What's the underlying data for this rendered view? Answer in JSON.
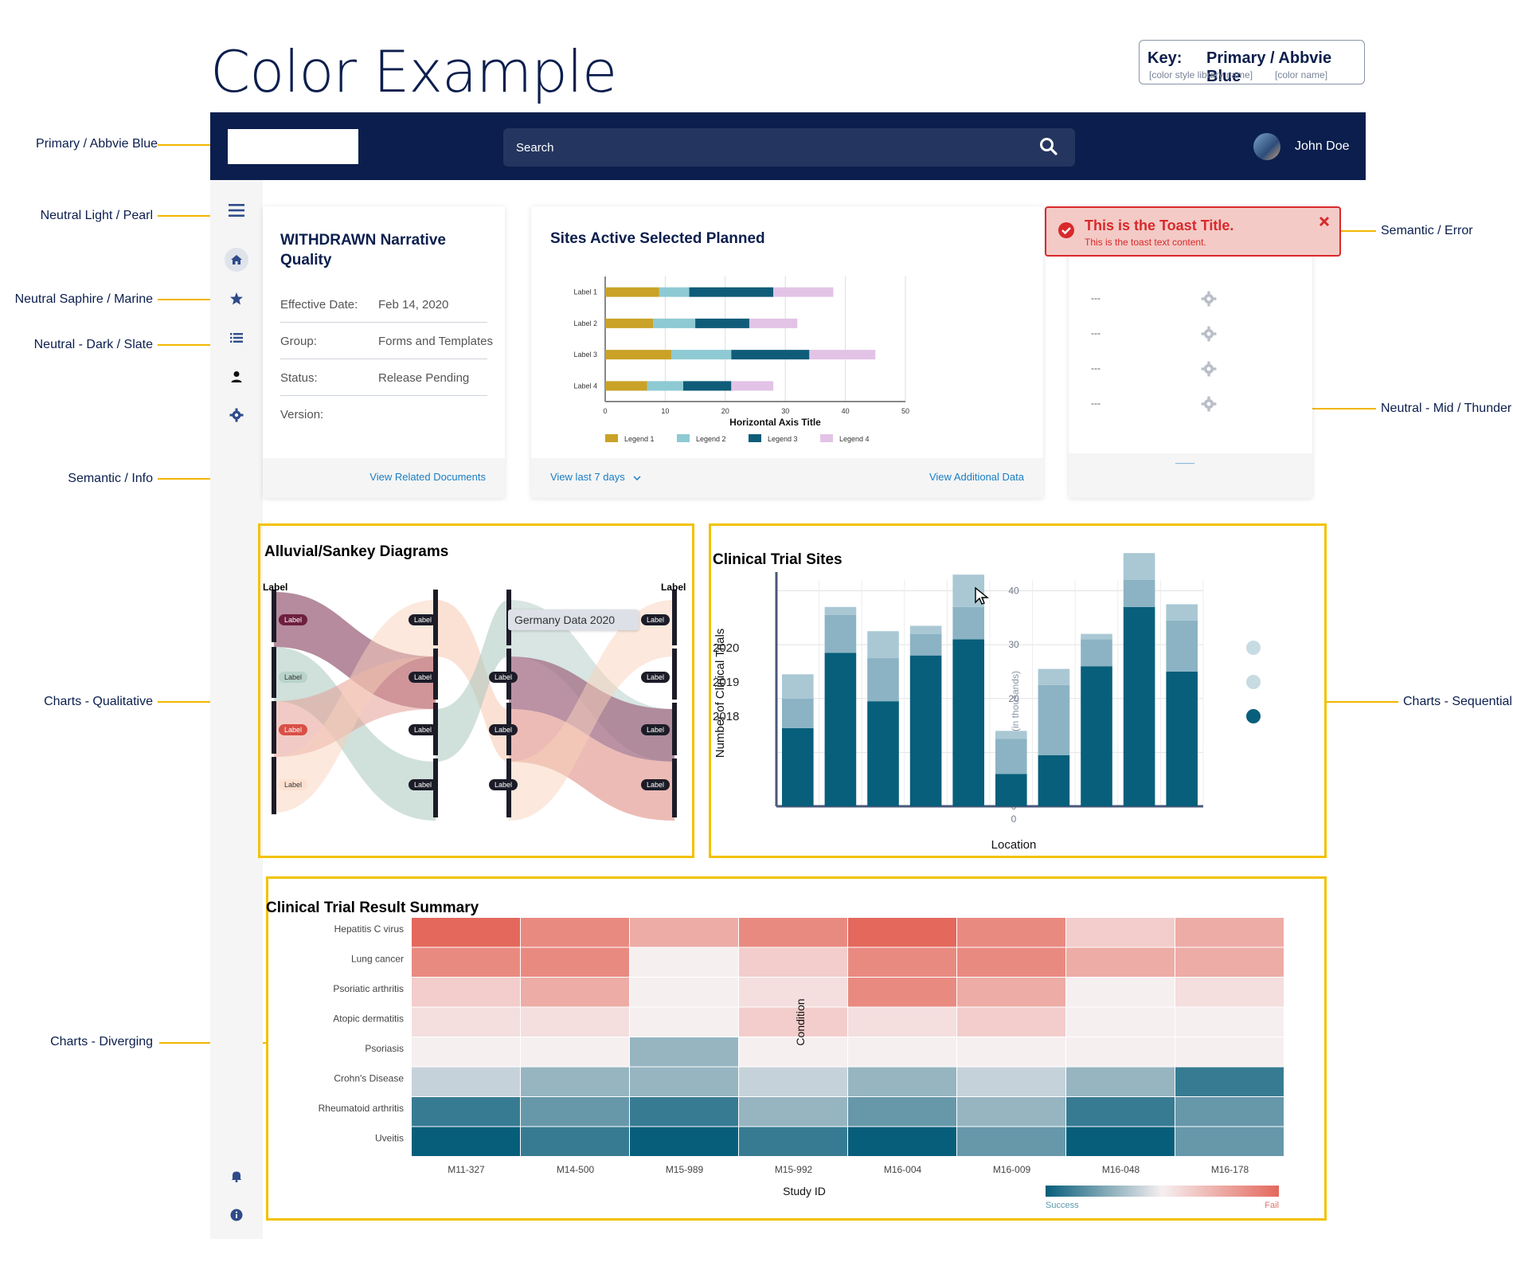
{
  "page": {
    "title": "Color Example"
  },
  "key": {
    "label": "Key:",
    "value": "Primary / Abbvie Blue",
    "sub_left": "[color style library name]",
    "sub_right": "[color name]"
  },
  "annotations": {
    "primary": "Primary / Abbvie Blue",
    "neutral_light": "Neutral Light / Pearl",
    "neutral_saphire": "Neutral Saphire / Marine",
    "neutral_dark": "Neutral - Dark / Slate",
    "semantic_info": "Semantic / Info",
    "charts_qual": "Charts - Qualitative",
    "charts_div": "Charts - Diverging",
    "semantic_error": "Semantic / Error",
    "neutral_mid": "Neutral - Mid / Thunder",
    "charts_seq": "Charts - Sequential"
  },
  "nav": {
    "search_placeholder": "Search",
    "user_name": "John Doe"
  },
  "sidebar": {
    "icons": [
      "menu-icon",
      "home-icon",
      "star-icon",
      "list-icon",
      "person-icon",
      "gear-icon",
      "bell-icon",
      "info-icon"
    ]
  },
  "card1": {
    "title": "WITHDRAWN Narrative Quality",
    "rows": [
      {
        "k": "Effective Date:",
        "v": "Feb 14, 2020"
      },
      {
        "k": "Group:",
        "v": "Forms and Templates"
      },
      {
        "k": "Status:",
        "v": "Release Pending"
      },
      {
        "k": "Version:",
        "v": ""
      }
    ],
    "link": "View Related Documents"
  },
  "card2": {
    "title": "Sites Active Selected Planned",
    "footer_left": "View last 7 days",
    "footer_right": "View Additional Data"
  },
  "card3": {
    "rows": [
      "---",
      "---",
      "---",
      "---"
    ],
    "footer_link": "———"
  },
  "toast": {
    "title": "This is the Toast Title.",
    "text": "This is the toast text content."
  },
  "sankey": {
    "title": "Alluvial/Sankey Diagrams",
    "left_label": "Label",
    "right_label": "Label",
    "node_label": "Label",
    "tooltip": "Germany Data 2020"
  },
  "colors": {
    "primary": "#0b1e4d",
    "accent": "#f2c200",
    "error": "#d9292b",
    "info": "#1a7dc4",
    "seq_dark": "#075f7b",
    "seq_mid": "#8bb3c3",
    "seq_light": "#a9c8d4"
  },
  "chart_data": [
    {
      "type": "bar",
      "orientation": "horizontal",
      "stacked": true,
      "categories": [
        "Label 1",
        "Label 2",
        "Label 3",
        "Label 4"
      ],
      "series": [
        {
          "name": "Legend 1",
          "color": "#c9a227",
          "values": [
            9,
            8,
            11,
            7
          ]
        },
        {
          "name": "Legend 2",
          "color": "#8ecad3",
          "values": [
            5,
            7,
            10,
            6
          ]
        },
        {
          "name": "Legend 3",
          "color": "#0f5c79",
          "values": [
            14,
            9,
            13,
            8
          ]
        },
        {
          "name": "Legend 4",
          "color": "#e2c3e6",
          "values": [
            10,
            8,
            11,
            7
          ]
        }
      ],
      "xlabel": "Horizontal Axis Title",
      "xticks": [
        0,
        10,
        20,
        30,
        40,
        50
      ],
      "xlim": [
        0,
        50
      ],
      "grid": true,
      "legend": "bottom"
    },
    {
      "type": "bar",
      "stacked": true,
      "title": "Clinical Trial Sites",
      "xlabel": "Location",
      "ylabel": "Number of Clinical Trials",
      "secondary_ylabel": "(in thousands)",
      "yticks": [
        0,
        10,
        20,
        30,
        40
      ],
      "ylim": [
        0,
        42
      ],
      "series": [
        {
          "name": "2018",
          "color": "#075f7b",
          "values": [
            14.5,
            28.5,
            19.5,
            28,
            31,
            6,
            9.5,
            26,
            37,
            25
          ]
        },
        {
          "name": "2019",
          "color": "#8bb3c3",
          "values": [
            5.5,
            7,
            8,
            4,
            6,
            6.5,
            13,
            5,
            5,
            9.5
          ]
        },
        {
          "name": "2020",
          "color": "#a9c8d4",
          "values": [
            4.5,
            1.5,
            5,
            1.5,
            6,
            1.5,
            3,
            1,
            5,
            3
          ]
        }
      ],
      "legend_labels": [
        "2020",
        "2019",
        "2018"
      ],
      "legend": "right",
      "grid": true
    },
    {
      "type": "heatmap",
      "title": "Clinical Trial Result Summary",
      "xlabel": "Study ID",
      "ylabel": "Condition",
      "x": [
        "M11-327",
        "M14-500",
        "M15-989",
        "M15-992",
        "M16-004",
        "M16-009",
        "M16-048",
        "M16-178"
      ],
      "y": [
        "Hepatitis C virus",
        "Lung cancer",
        "Psoriatic arthritis",
        "Atopic dermatitis",
        "Psoriasis",
        "Crohn's Disease",
        "Rheumatoid arthritis",
        "Uveitis"
      ],
      "values": [
        [
          4,
          3,
          2,
          3,
          4,
          3,
          1,
          2
        ],
        [
          3,
          3,
          0,
          1,
          3,
          3,
          2,
          2
        ],
        [
          1,
          2,
          0,
          0.5,
          3,
          2,
          0,
          0.5
        ],
        [
          0.5,
          0.5,
          0,
          1,
          0.5,
          1,
          0,
          0
        ],
        [
          0,
          0,
          -2,
          0,
          0,
          0,
          0,
          0
        ],
        [
          -1,
          -2,
          -2,
          -1,
          -2,
          -1,
          -2,
          -4
        ],
        [
          -4,
          -3,
          -4,
          -2,
          -3,
          -2,
          -4,
          -3
        ],
        [
          -5,
          -4,
          -5,
          -4,
          -5,
          -3,
          -5,
          -3
        ]
      ],
      "scale": {
        "min": -5,
        "max": 4,
        "low_label": "Success",
        "high_label": "Fail"
      }
    }
  ]
}
